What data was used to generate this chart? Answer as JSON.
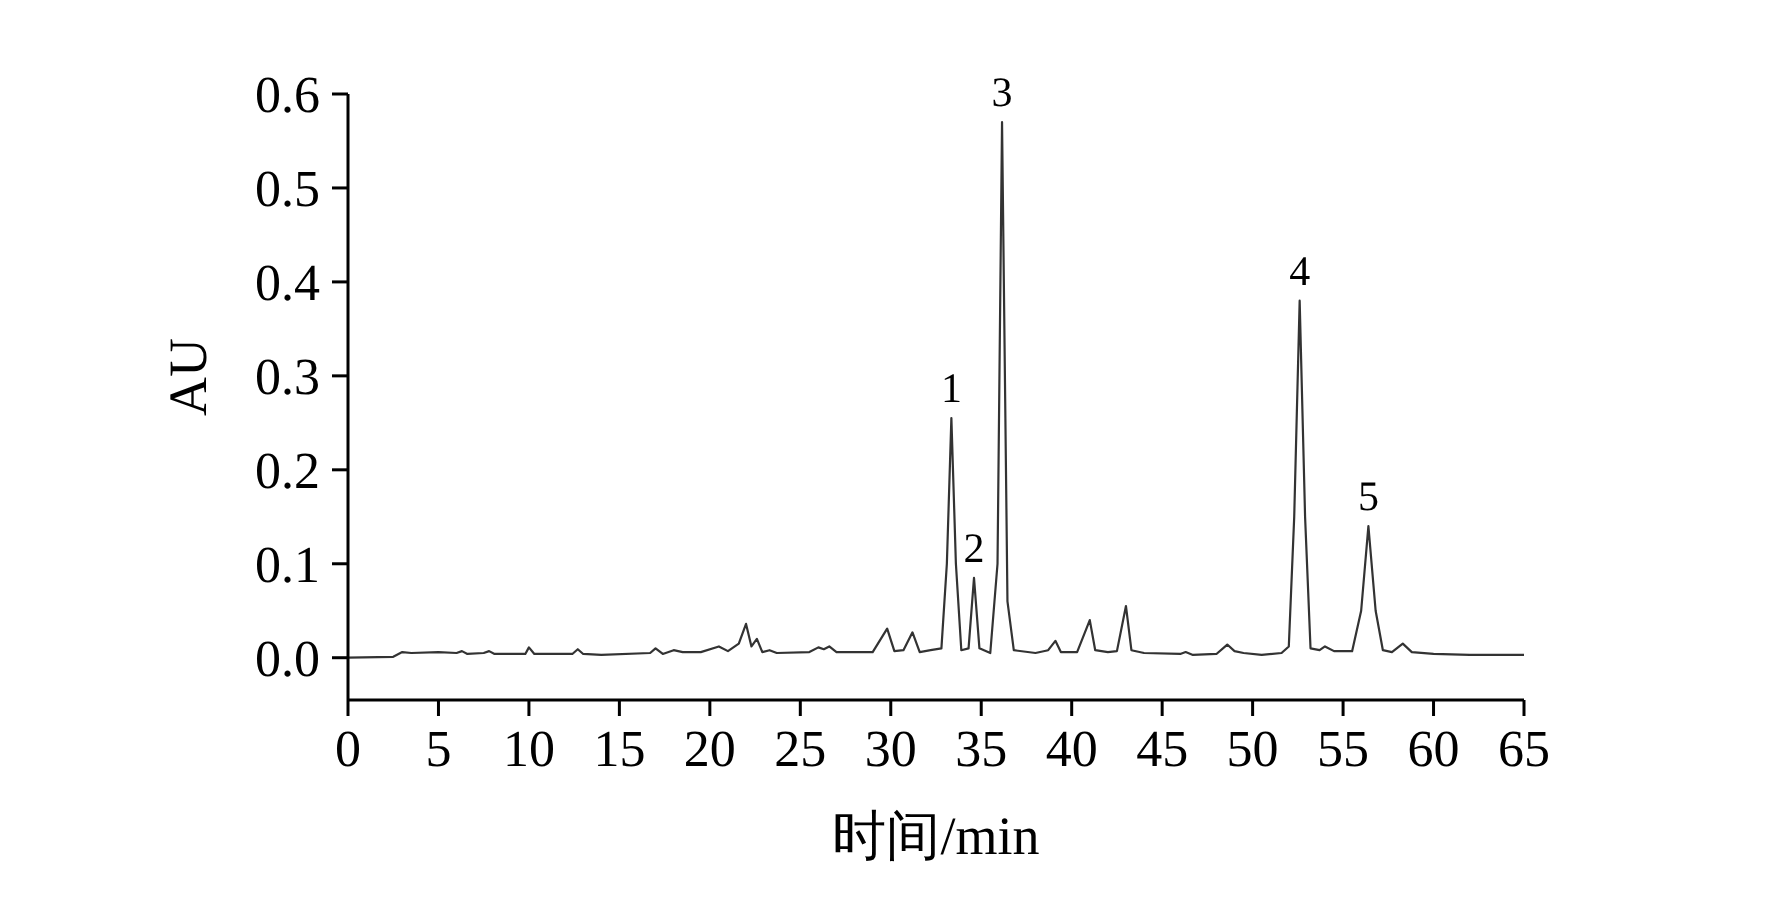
{
  "chart_data": {
    "type": "line",
    "xlabel": "时间/min",
    "ylabel": "AU",
    "xlim": [
      0,
      65
    ],
    "ylim": [
      -0.045,
      0.6
    ],
    "xticks": [
      0,
      5,
      10,
      15,
      20,
      25,
      30,
      35,
      40,
      45,
      50,
      55,
      60,
      65
    ],
    "yticks": [
      {
        "value": 0,
        "label": "0.0"
      },
      0.1,
      0.2,
      0.3,
      0.4,
      0.5,
      0.6
    ],
    "grid": false,
    "marker": "none",
    "line_style": "solid",
    "annotations": [
      {
        "text": "1",
        "x": 33.35,
        "y": 0.255
      },
      {
        "text": "2",
        "x": 34.6,
        "y": 0.085
      },
      {
        "text": "3",
        "x": 36.15,
        "y": 0.57
      },
      {
        "text": "4",
        "x": 52.6,
        "y": 0.38
      },
      {
        "text": "5",
        "x": 56.4,
        "y": 0.14
      }
    ],
    "series": [
      {
        "color": "#333333",
        "x": [
          0,
          2.5,
          3,
          3.5,
          5,
          6,
          6.3,
          6.6,
          7.5,
          7.8,
          8.1,
          9.8,
          10,
          10.3,
          12.4,
          12.7,
          13,
          14,
          16.7,
          17,
          17.4,
          18,
          18.5,
          19.5,
          20.5,
          21,
          21.6,
          22,
          22.3,
          22.6,
          22.9,
          23.3,
          23.7,
          25.5,
          26,
          26.3,
          26.6,
          27,
          29,
          29.8,
          30.2,
          30.7,
          31.2,
          31.6,
          32.2,
          32.8,
          33.1,
          33.35,
          33.6,
          33.9,
          34.3,
          34.6,
          34.9,
          35.5,
          35.9,
          36.15,
          36.45,
          36.8,
          38,
          38.7,
          39.1,
          39.4,
          40.3,
          41,
          41.3,
          42,
          42.5,
          43,
          43.3,
          44,
          46,
          46.3,
          46.7,
          48,
          48.6,
          49,
          49.5,
          50.5,
          51.6,
          52,
          52.3,
          52.6,
          52.9,
          53.2,
          53.7,
          54,
          54.5,
          55.5,
          56,
          56.4,
          56.8,
          57.2,
          57.7,
          58.3,
          58.8,
          60,
          62,
          65
        ],
        "values": [
          0,
          0.001,
          0.006,
          0.005,
          0.006,
          0.005,
          0.007,
          0.004,
          0.005,
          0.007,
          0.004,
          0.004,
          0.011,
          0.004,
          0.004,
          0.009,
          0.004,
          0.003,
          0.005,
          0.01,
          0.004,
          0.008,
          0.006,
          0.006,
          0.012,
          0.007,
          0.015,
          0.036,
          0.012,
          0.02,
          0.006,
          0.008,
          0.005,
          0.006,
          0.011,
          0.009,
          0.012,
          0.006,
          0.006,
          0.031,
          0.007,
          0.008,
          0.027,
          0.006,
          0.008,
          0.01,
          0.1,
          0.255,
          0.1,
          0.008,
          0.01,
          0.085,
          0.01,
          0.005,
          0.1,
          0.57,
          0.06,
          0.008,
          0.005,
          0.008,
          0.018,
          0.006,
          0.006,
          0.04,
          0.008,
          0.006,
          0.007,
          0.055,
          0.008,
          0.005,
          0.004,
          0.006,
          0.003,
          0.004,
          0.014,
          0.007,
          0.005,
          0.003,
          0.005,
          0.012,
          0.15,
          0.38,
          0.15,
          0.01,
          0.008,
          0.012,
          0.007,
          0.007,
          0.05,
          0.14,
          0.05,
          0.008,
          0.006,
          0.015,
          0.006,
          0.004,
          0.003,
          0.003
        ]
      }
    ]
  }
}
